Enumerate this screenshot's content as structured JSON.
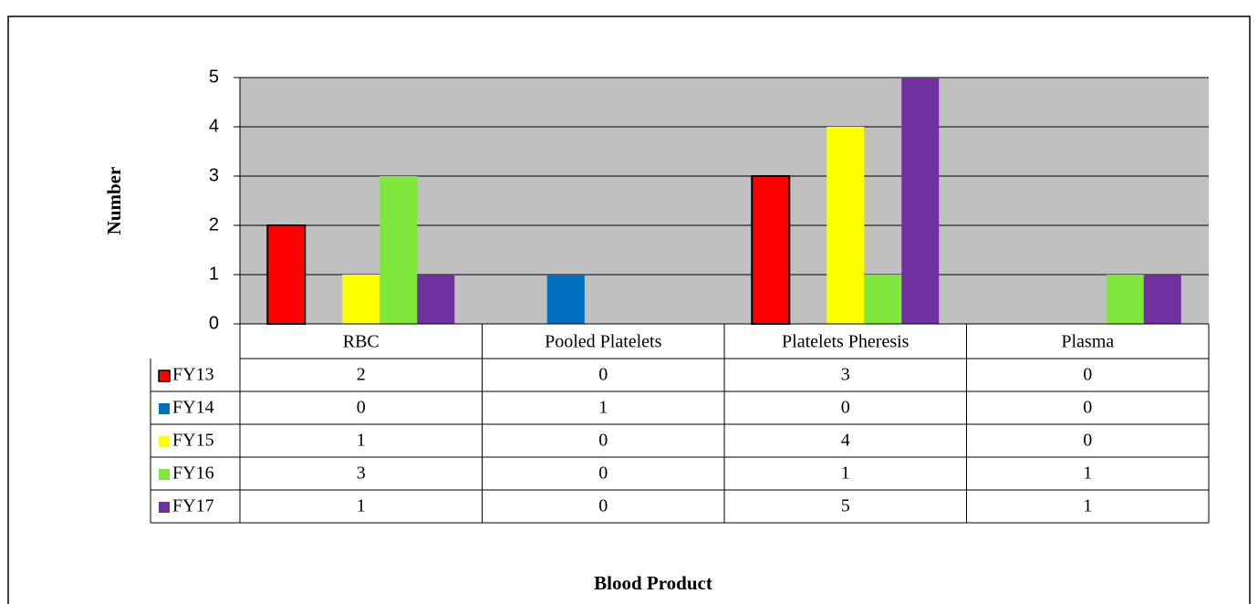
{
  "chart_data": {
    "type": "bar",
    "y_label": "Number",
    "x_label": "Blood Product",
    "categories": [
      "RBC",
      "Pooled Platelets",
      "Platelets Pheresis",
      "Plasma"
    ],
    "series": [
      {
        "name": "FY13",
        "color": "#ff0000",
        "values": [
          2,
          0,
          3,
          0
        ]
      },
      {
        "name": "FY14",
        "color": "#0070c0",
        "values": [
          0,
          1,
          0,
          0
        ]
      },
      {
        "name": "FY15",
        "color": "#ffff00",
        "values": [
          1,
          0,
          4,
          0
        ]
      },
      {
        "name": "FY16",
        "color": "#80e83c",
        "values": [
          3,
          0,
          1,
          1
        ]
      },
      {
        "name": "FY17",
        "color": "#7030a0",
        "values": [
          1,
          0,
          5,
          1
        ]
      }
    ],
    "ylim": [
      0,
      5
    ],
    "yticks": [
      0,
      1,
      2,
      3,
      4,
      5
    ],
    "grid": true
  }
}
